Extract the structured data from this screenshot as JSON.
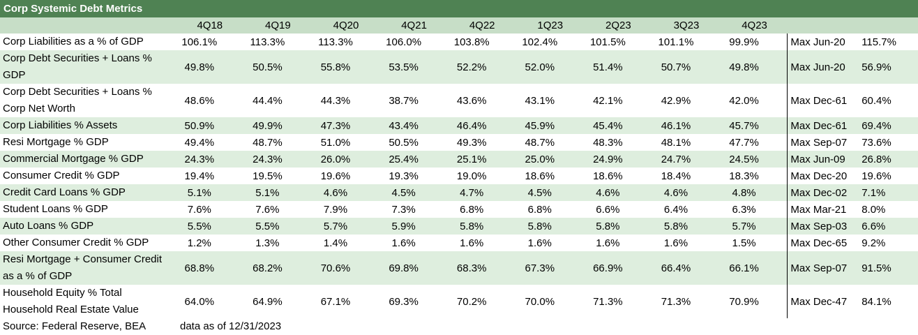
{
  "title": "Corp Systemic Debt Metrics",
  "periods": [
    "4Q18",
    "4Q19",
    "4Q20",
    "4Q21",
    "4Q22",
    "1Q23",
    "2Q23",
    "3Q23",
    "4Q23"
  ],
  "rows": [
    {
      "label": "Corp Liabilities as a % of GDP",
      "values": [
        "106.1%",
        "113.3%",
        "113.3%",
        "106.0%",
        "103.8%",
        "102.4%",
        "101.5%",
        "101.1%",
        "99.9%"
      ],
      "max_label": "Max Jun-20",
      "max_value": "115.7%"
    },
    {
      "label": "Corp Debt Securities + Loans % GDP",
      "values": [
        "49.8%",
        "50.5%",
        "55.8%",
        "53.5%",
        "52.2%",
        "52.0%",
        "51.4%",
        "50.7%",
        "49.8%"
      ],
      "max_label": "Max Jun-20",
      "max_value": "56.9%"
    },
    {
      "label": "Corp Debt Securities + Loans % Corp Net Worth",
      "values": [
        "48.6%",
        "44.4%",
        "44.3%",
        "38.7%",
        "43.6%",
        "43.1%",
        "42.1%",
        "42.9%",
        "42.0%"
      ],
      "max_label": "Max Dec-61",
      "max_value": "60.4%"
    },
    {
      "label": "Corp Liabilities % Assets",
      "values": [
        "50.9%",
        "49.9%",
        "47.3%",
        "43.4%",
        "46.4%",
        "45.9%",
        "45.4%",
        "46.1%",
        "45.7%"
      ],
      "max_label": "Max Dec-61",
      "max_value": "69.4%"
    },
    {
      "label": "Resi Mortgage % GDP",
      "values": [
        "49.4%",
        "48.7%",
        "51.0%",
        "50.5%",
        "49.3%",
        "48.7%",
        "48.3%",
        "48.1%",
        "47.7%"
      ],
      "max_label": "Max Sep-07",
      "max_value": "73.6%"
    },
    {
      "label": "Commercial Mortgage % GDP",
      "values": [
        "24.3%",
        "24.3%",
        "26.0%",
        "25.4%",
        "25.1%",
        "25.0%",
        "24.9%",
        "24.7%",
        "24.5%"
      ],
      "max_label": "Max Jun-09",
      "max_value": "26.8%"
    },
    {
      "label": "Consumer Credit % GDP",
      "values": [
        "19.4%",
        "19.5%",
        "19.6%",
        "19.3%",
        "19.0%",
        "18.6%",
        "18.6%",
        "18.4%",
        "18.3%"
      ],
      "max_label": "Max Dec-20",
      "max_value": "19.6%"
    },
    {
      "label": "Credit Card Loans % GDP",
      "values": [
        "5.1%",
        "5.1%",
        "4.6%",
        "4.5%",
        "4.7%",
        "4.5%",
        "4.6%",
        "4.6%",
        "4.8%"
      ],
      "max_label": "Max Dec-02",
      "max_value": "7.1%"
    },
    {
      "label": "Student Loans % GDP",
      "values": [
        "7.6%",
        "7.6%",
        "7.9%",
        "7.3%",
        "6.8%",
        "6.8%",
        "6.6%",
        "6.4%",
        "6.3%"
      ],
      "max_label": "Max Mar-21",
      "max_value": "8.0%"
    },
    {
      "label": "Auto Loans % GDP",
      "values": [
        "5.5%",
        "5.5%",
        "5.7%",
        "5.9%",
        "5.8%",
        "5.8%",
        "5.8%",
        "5.8%",
        "5.7%"
      ],
      "max_label": "Max Sep-03",
      "max_value": "6.6%"
    },
    {
      "label": "Other Consumer Credit % GDP",
      "values": [
        "1.2%",
        "1.3%",
        "1.4%",
        "1.6%",
        "1.6%",
        "1.6%",
        "1.6%",
        "1.6%",
        "1.5%"
      ],
      "max_label": "Max Dec-65",
      "max_value": "9.2%"
    },
    {
      "label": "Resi Mortgage + Consumer Credit as a % of GDP",
      "values": [
        "68.8%",
        "68.2%",
        "70.6%",
        "69.8%",
        "68.3%",
        "67.3%",
        "66.9%",
        "66.4%",
        "66.1%"
      ],
      "max_label": "Max Sep-07",
      "max_value": "91.5%"
    },
    {
      "label": "Household Equity % Total Household Real Estate Value",
      "values": [
        "64.0%",
        "64.9%",
        "67.1%",
        "69.3%",
        "70.2%",
        "70.0%",
        "71.3%",
        "71.3%",
        "70.9%"
      ],
      "max_label": "Max Dec-47",
      "max_value": "84.1%"
    }
  ],
  "footer": {
    "source": "Source: Federal Reserve, BEA",
    "as_of": "data as of 12/31/2023"
  },
  "colors": {
    "title_bg": "#4f8253",
    "header_bg": "#c7dec7",
    "shade_bg": "#deeede"
  }
}
